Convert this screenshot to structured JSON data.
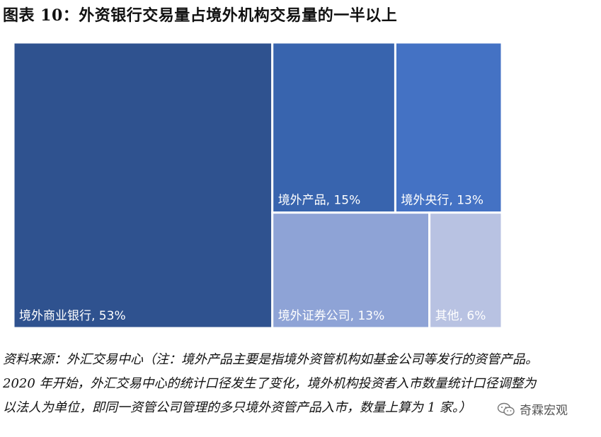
{
  "figure": {
    "title": "图表 10：外资银行交易量占境外机构交易量的一半以上"
  },
  "chart_data": {
    "type": "treemap",
    "title": "图表 10：外资银行交易量占境外机构交易量的一半以上",
    "unit": "%",
    "items": [
      {
        "label": "境外商业银行, 53%",
        "name": "境外商业银行",
        "value": 53,
        "color": "#2f528f"
      },
      {
        "label": "境外产品, 15%",
        "name": "境外产品",
        "value": 15,
        "color": "#3864ae"
      },
      {
        "label": "境外央行, 13%",
        "name": "境外央行",
        "value": 13,
        "color": "#4472c4"
      },
      {
        "label": "境外证券公司, 13%",
        "name": "境外证券公司",
        "value": 13,
        "color": "#8ea3d6"
      },
      {
        "label": "其他, 6%",
        "name": "其他",
        "value": 6,
        "color": "#b8c2e2"
      }
    ]
  },
  "note": {
    "lines": [
      "资料来源：外汇交易中心（注：境外产品主要是指境外资管机构如基金公司等发行的资管产品。",
      "2020 年开始，外汇交易中心的统计口径发生了变化，境外机构投资者入市数量统计口径调整为",
      "以法人为单位，即同一资管公司管理的多只境外资管产品入市，数量上算为 1 家。）"
    ]
  },
  "watermark": {
    "text": "奇霖宏观",
    "icon": "wechat-icon"
  }
}
